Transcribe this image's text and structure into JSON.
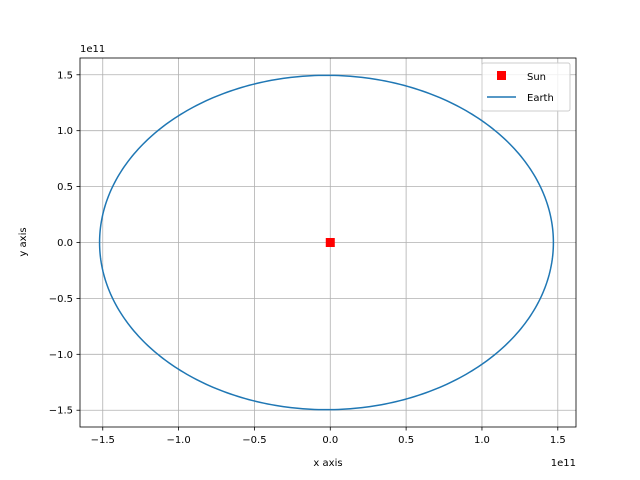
{
  "chart_data": {
    "type": "line",
    "xlabel": "x axis",
    "ylabel": "y axis",
    "x_offset_text": "1e11",
    "y_offset_text": "1e11",
    "xlim": [
      -1.65,
      1.62
    ],
    "ylim": [
      -1.65,
      1.65
    ],
    "xticks": [
      -1.5,
      -1.0,
      -0.5,
      0.0,
      0.5,
      1.0,
      1.5
    ],
    "yticks": [
      -1.5,
      -1.0,
      -0.5,
      0.0,
      0.5,
      1.0,
      1.5
    ],
    "xtick_labels": [
      "−1.5",
      "−1.0",
      "−0.5",
      "0.0",
      "0.5",
      "1.0",
      "1.5"
    ],
    "ytick_labels": [
      "−1.5",
      "−1.0",
      "−0.5",
      "0.0",
      "0.5",
      "1.0",
      "1.5"
    ],
    "grid": true,
    "legend_position": "top-right",
    "series": [
      {
        "name": "Sun",
        "kind": "marker",
        "marker": "square",
        "color": "#ff0000",
        "x": [
          0.0
        ],
        "y": [
          0.0
        ]
      },
      {
        "name": "Earth",
        "kind": "line",
        "color": "#1f77b4",
        "orbit": {
          "center_x": -0.025,
          "center_y": 0.0,
          "semi_major": 1.496,
          "semi_minor": 1.495
        }
      }
    ]
  }
}
